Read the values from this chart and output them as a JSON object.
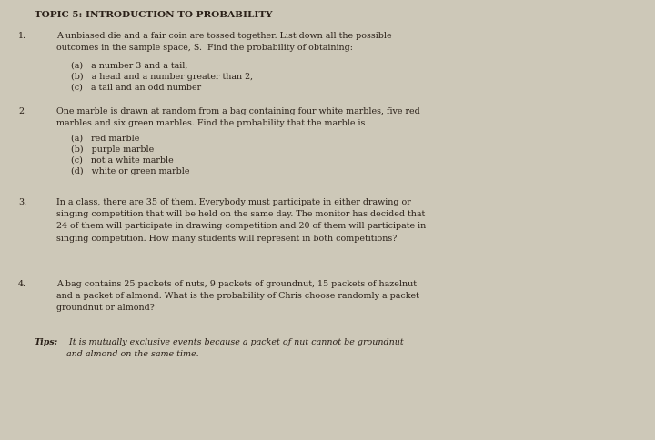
{
  "bg_color": "#cdc8b8",
  "text_color": "#2a2018",
  "title": "TOPIC 5: INTRODUCTION TO PROBABILITY",
  "q1_num": "1.",
  "q1_main": "A unbiased die and a fair coin are tossed together. List down all the possible\noutcomes in the sample space, S.  Find the probability of obtaining:",
  "q1_a": "(a)   a number 3 and a tail,",
  "q1_b": "(b)   a head and a number greater than 2,",
  "q1_c": "(c)   a tail and an odd number",
  "q2_num": "2.",
  "q2_main": "One marble is drawn at random from a bag containing four white marbles, five red\nmarbles and six green marbles. Find the probability that the marble is",
  "q2_a": "(a)   red marble",
  "q2_b": "(b)   purple marble",
  "q2_c": "(c)   not a white marble",
  "q2_d": "(d)   white or green marble",
  "q3_num": "3.",
  "q3_main": "In a class, there are 35 of them. Everybody must participate in either drawing or\nsinging competition that will be held on the same day. The monitor has decided that\n24 of them will participate in drawing competition and 20 of them will participate in\nsinging competition. How many students will represent in both competitions?",
  "q4_num": "4.",
  "q4_main": "A bag contains 25 packets of nuts, 9 packets of groundnut, 15 packets of hazelnut\nand a packet of almond. What is the probability of Chris choose randomly a packet\ngroundnut or almond?",
  "tips_label": "Tips:",
  "tips_text": " It is mutually exclusive events because a packet of nut cannot be groundnut\nand almond on the same time.",
  "title_fontsize": 7.5,
  "body_fontsize": 6.8,
  "tips_fontsize": 6.8
}
